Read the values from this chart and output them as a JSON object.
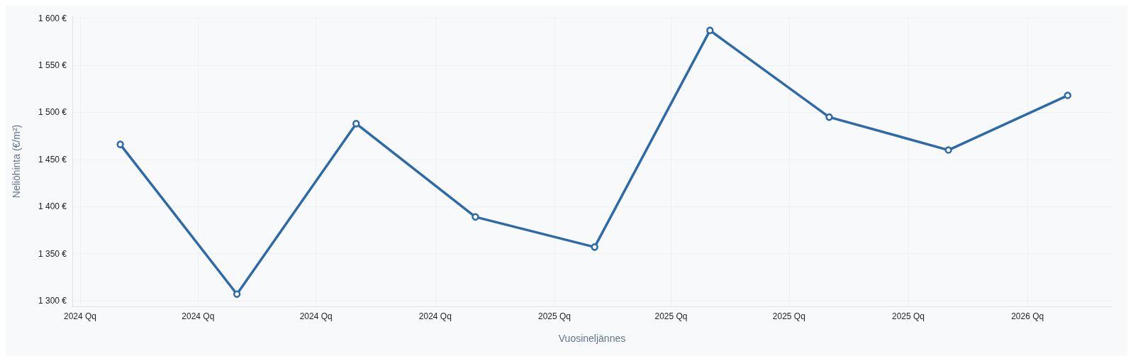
{
  "chart_data": {
    "type": "line",
    "xlabel": "Vuosineljännes",
    "ylabel": "Neliöhinta (€/m²)",
    "x": [
      "2024-02",
      "2024-05",
      "2024-08",
      "2024-11",
      "2025-02",
      "2025-05",
      "2025-08",
      "2025-11",
      "2026-02"
    ],
    "series": [
      {
        "color": "#2e6aa8",
        "values": [
          1466,
          1307,
          1488,
          1389,
          1357,
          1587,
          1495,
          1460,
          1518
        ]
      }
    ],
    "xlim": [
      "2023-12-26",
      "2026-03-07"
    ],
    "xticks": [
      {
        "value": "2024-01",
        "label": "2024 Qq"
      },
      {
        "value": "2024-04",
        "label": "2024 Qq"
      },
      {
        "value": "2024-07",
        "label": "2024 Qq"
      },
      {
        "value": "2024-10",
        "label": "2024 Qq"
      },
      {
        "value": "2025-01",
        "label": "2025 Qq"
      },
      {
        "value": "2025-04",
        "label": "2025 Qq"
      },
      {
        "value": "2025-07",
        "label": "2025 Qq"
      },
      {
        "value": "2025-10",
        "label": "2025 Qq"
      },
      {
        "value": "2026-01",
        "label": "2026 Qq"
      }
    ],
    "ylim": [
      1294,
      1602
    ],
    "yticks": [
      {
        "value": 1300,
        "label": "1 300 €"
      },
      {
        "value": 1350,
        "label": "1 350 €"
      },
      {
        "value": 1400,
        "label": "1 400 €"
      },
      {
        "value": 1450,
        "label": "1 450 €"
      },
      {
        "value": 1500,
        "label": "1 500 €"
      },
      {
        "value": 1550,
        "label": "1 550 €"
      },
      {
        "value": 1600,
        "label": "1 600 €"
      }
    ],
    "grid": true,
    "marker": "circle",
    "line_style": "solid"
  }
}
